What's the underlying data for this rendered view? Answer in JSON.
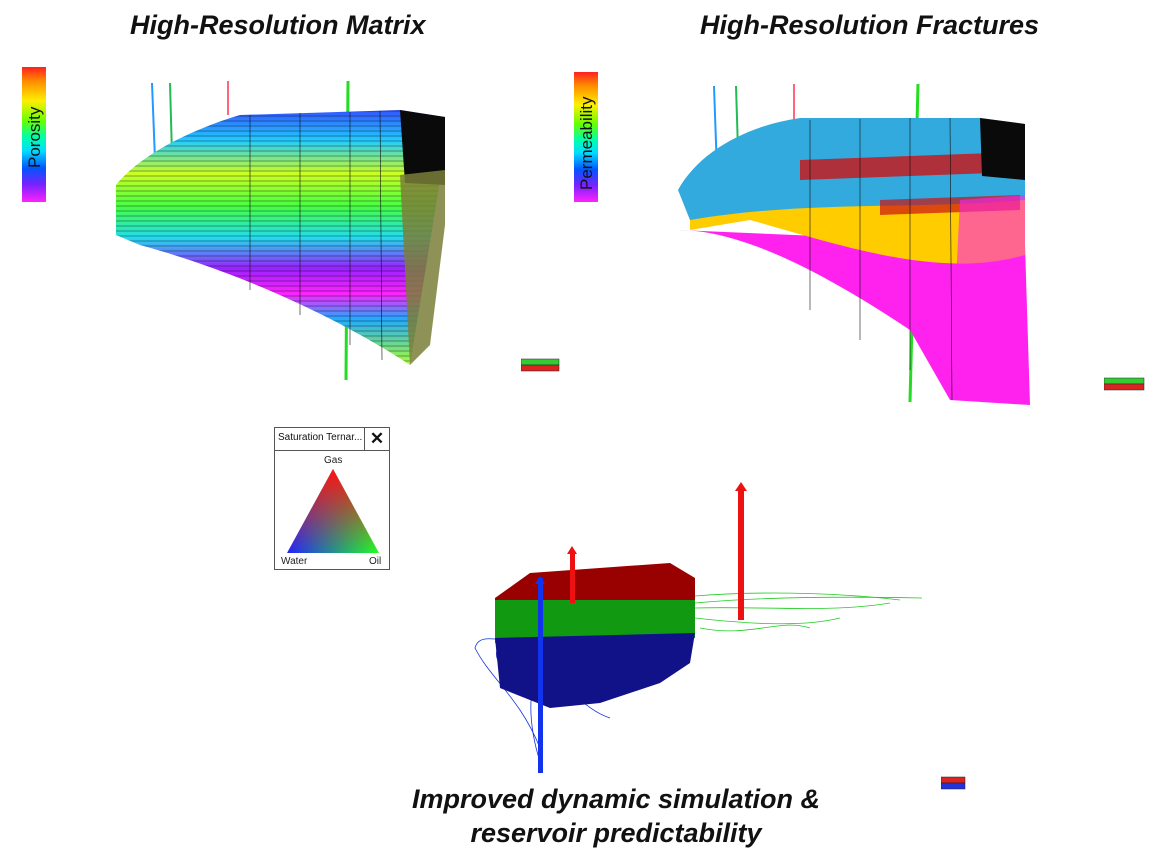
{
  "panels": {
    "matrix": {
      "title": "High-Resolution Matrix",
      "colorbar_label": "Porosity"
    },
    "fractures": {
      "title": "High-Resolution Fractures",
      "colorbar_label": "Permeability"
    }
  },
  "ternary_legend": {
    "title": "Saturation Ternar...",
    "close_symbol": "✕",
    "labels": {
      "top": "Gas",
      "left": "Water",
      "right": "Oil"
    }
  },
  "caption": {
    "line1": "Improved dynamic simulation &",
    "line2": "reservoir predictability"
  },
  "colors": {
    "gas": "#cc1111",
    "oil": "#22aa22",
    "water": "#1122bb",
    "fracture_pink": "#ff22ee",
    "fracture_yellow": "#ffcc00",
    "fracture_blue": "#33aadd"
  }
}
